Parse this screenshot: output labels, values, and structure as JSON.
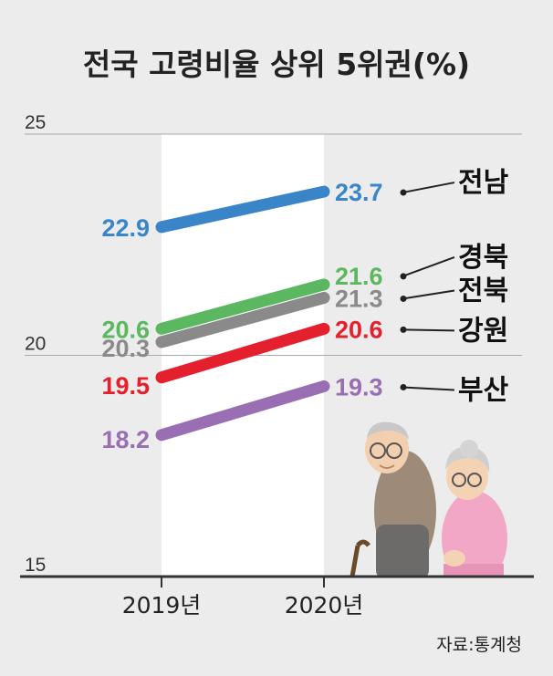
{
  "title": "전국 고령비율 상위 5위권(%)",
  "source": "자료:통계청",
  "colors": {
    "background": "#ececec",
    "plot_band": "#ffffff",
    "axis": "#333333",
    "gridline": "#a9a9a9",
    "connector": "#222222"
  },
  "chart_data": {
    "type": "line",
    "title": "전국 고령비율 상위 5위권(%)",
    "x": [
      "2019년",
      "2020년"
    ],
    "ylim": [
      15,
      25
    ],
    "yticks": [
      25,
      20,
      15
    ],
    "grid": "y at 20 and 25",
    "series": [
      {
        "name": "전남",
        "color": "#3a85c8",
        "values": [
          22.9,
          23.7
        ]
      },
      {
        "name": "경북",
        "color": "#5bb860",
        "values": [
          20.6,
          21.6
        ]
      },
      {
        "name": "전북",
        "color": "#8a8a8a",
        "values": [
          20.3,
          21.3
        ]
      },
      {
        "name": "강원",
        "color": "#e5202e",
        "values": [
          19.5,
          20.6
        ]
      },
      {
        "name": "부산",
        "color": "#9a6eb2",
        "values": [
          18.2,
          19.3
        ]
      }
    ]
  }
}
